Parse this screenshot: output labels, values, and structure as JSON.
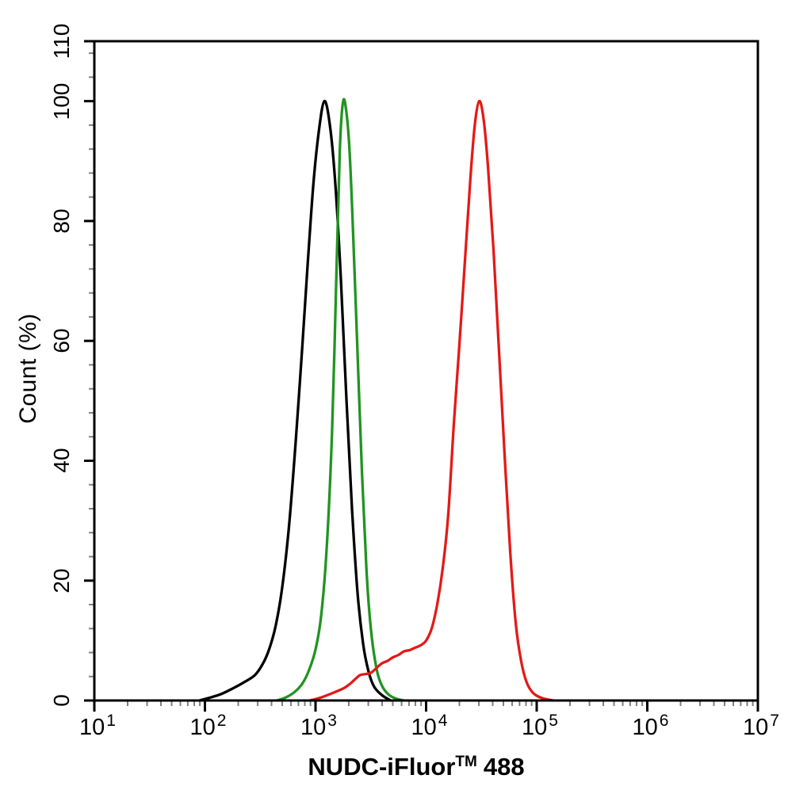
{
  "figure": {
    "background": "#ffffff",
    "axis_color": "#000000",
    "minor_tick_color": "#808080"
  },
  "axes": {
    "x": {
      "label_pre": "NUDC-iFluor",
      "label_sup": "TM",
      "label_post": "488",
      "full_label": "NUDC-iFluor™ 488",
      "scale": "log10",
      "tick_base": "10",
      "major_tick_exponents": [
        1,
        2,
        3,
        4,
        5,
        6,
        7
      ],
      "minor_ticks_per_decade": "2-9"
    },
    "y": {
      "label": "Count  (%)",
      "major_ticks": [
        0,
        20,
        40,
        60,
        80,
        100,
        110
      ],
      "minor_tick_step": 4,
      "range": [
        0,
        110
      ]
    }
  },
  "chart_data": {
    "type": "line",
    "subtype": "flow-cytometry-histogram-overlay",
    "title": "",
    "xlabel": "NUDC-iFluor™ 488",
    "ylabel": "Count  (%)",
    "x_scale": "log",
    "xlim": [
      10,
      10000000
    ],
    "ylim": [
      0,
      110
    ],
    "grid": false,
    "legend": false,
    "series": [
      {
        "name": "black-histogram",
        "color": "#000000",
        "peak_x_approx": 1200,
        "peak_y_pct": 100,
        "points_log10x_pct": [
          [
            1.95,
            0
          ],
          [
            2.05,
            0.5
          ],
          [
            2.15,
            1.1
          ],
          [
            2.25,
            2
          ],
          [
            2.35,
            3
          ],
          [
            2.45,
            4.2
          ],
          [
            2.52,
            6
          ],
          [
            2.58,
            8.5
          ],
          [
            2.64,
            12.5
          ],
          [
            2.7,
            19
          ],
          [
            2.76,
            29
          ],
          [
            2.82,
            43
          ],
          [
            2.88,
            59
          ],
          [
            2.93,
            73
          ],
          [
            2.98,
            86
          ],
          [
            3.03,
            95
          ],
          [
            3.08,
            100
          ],
          [
            3.13,
            96
          ],
          [
            3.18,
            86
          ],
          [
            3.23,
            70
          ],
          [
            3.28,
            50
          ],
          [
            3.33,
            32
          ],
          [
            3.38,
            18
          ],
          [
            3.43,
            9.5
          ],
          [
            3.48,
            4.8
          ],
          [
            3.53,
            2.3
          ],
          [
            3.6,
            0.9
          ],
          [
            3.68,
            0
          ]
        ]
      },
      {
        "name": "green-histogram",
        "color": "#219421",
        "peak_x_approx": 1800,
        "peak_y_pct": 100,
        "points_log10x_pct": [
          [
            2.65,
            0
          ],
          [
            2.73,
            0.5
          ],
          [
            2.81,
            1.4
          ],
          [
            2.88,
            2.8
          ],
          [
            2.94,
            5
          ],
          [
            3.0,
            8.5
          ],
          [
            3.05,
            14
          ],
          [
            3.1,
            25
          ],
          [
            3.15,
            45
          ],
          [
            3.19,
            72
          ],
          [
            3.22,
            92
          ],
          [
            3.25,
            100
          ],
          [
            3.28,
            98
          ],
          [
            3.31,
            91
          ],
          [
            3.34,
            78
          ],
          [
            3.38,
            58
          ],
          [
            3.42,
            38
          ],
          [
            3.46,
            22
          ],
          [
            3.5,
            12
          ],
          [
            3.55,
            5.5
          ],
          [
            3.6,
            2.5
          ],
          [
            3.66,
            1
          ],
          [
            3.73,
            0.3
          ],
          [
            3.8,
            0
          ]
        ]
      },
      {
        "name": "red-histogram",
        "color": "#e31a17",
        "peak_x_approx": 30000,
        "peak_y_pct": 100,
        "points_log10x_pct": [
          [
            2.95,
            0
          ],
          [
            3.05,
            0.5
          ],
          [
            3.15,
            1.2
          ],
          [
            3.25,
            2
          ],
          [
            3.3,
            2.6
          ],
          [
            3.35,
            3.4
          ],
          [
            3.4,
            4.2
          ],
          [
            3.45,
            4.4
          ],
          [
            3.5,
            4.6
          ],
          [
            3.55,
            5.4
          ],
          [
            3.6,
            6.2
          ],
          [
            3.65,
            6.6
          ],
          [
            3.7,
            7.2
          ],
          [
            3.75,
            7.6
          ],
          [
            3.8,
            8.2
          ],
          [
            3.85,
            8.4
          ],
          [
            3.9,
            8.8
          ],
          [
            3.95,
            9.2
          ],
          [
            4.0,
            10
          ],
          [
            4.05,
            12
          ],
          [
            4.1,
            16
          ],
          [
            4.15,
            22
          ],
          [
            4.2,
            31
          ],
          [
            4.25,
            46
          ],
          [
            4.3,
            59
          ],
          [
            4.35,
            73
          ],
          [
            4.4,
            87
          ],
          [
            4.44,
            96
          ],
          [
            4.48,
            100
          ],
          [
            4.52,
            97
          ],
          [
            4.56,
            89
          ],
          [
            4.61,
            75
          ],
          [
            4.66,
            58
          ],
          [
            4.71,
            41
          ],
          [
            4.76,
            25
          ],
          [
            4.81,
            13
          ],
          [
            4.86,
            6.5
          ],
          [
            4.91,
            3
          ],
          [
            4.97,
            1.2
          ],
          [
            5.05,
            0.4
          ],
          [
            5.15,
            0
          ]
        ]
      }
    ]
  }
}
